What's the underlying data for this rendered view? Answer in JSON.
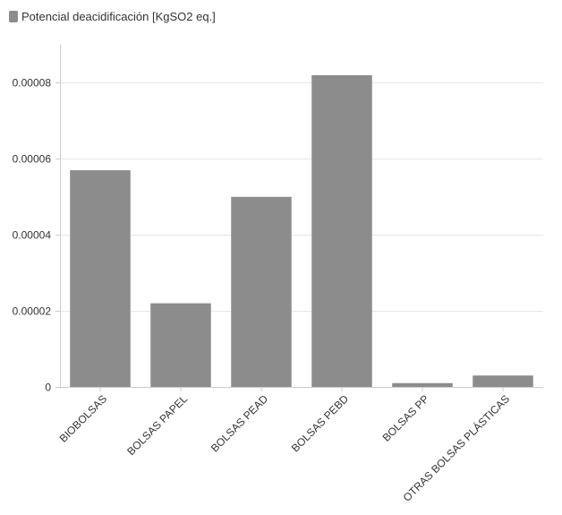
{
  "chart_data": {
    "type": "bar",
    "categories": [
      "BIOBOLSAS",
      "BOLSAS PAPEL",
      "BOLSAS PEAD",
      "BOLSAS PEBD",
      "BOLSAS PP",
      "OTRAS BOLSAS PLÁSTICAS"
    ],
    "series": [
      {
        "name": "Potencial deacidificación [KgSO2 eq.]",
        "values": [
          5.7e-05,
          2.2e-05,
          5e-05,
          8.2e-05,
          1e-06,
          3e-06
        ]
      }
    ],
    "yticks": [
      "0",
      "0.00002",
      "0.00004",
      "0.00006",
      "0.00008"
    ],
    "ytick_values": [
      0,
      2e-05,
      4e-05,
      6e-05,
      8e-05
    ],
    "ylim": [
      0,
      9e-05
    ],
    "grid": true,
    "legend_position": "top-left",
    "bar_color": "#8c8c8c",
    "axis_color": "#cccccc",
    "grid_color": "#e6e6e6",
    "text_color": "#333333"
  }
}
